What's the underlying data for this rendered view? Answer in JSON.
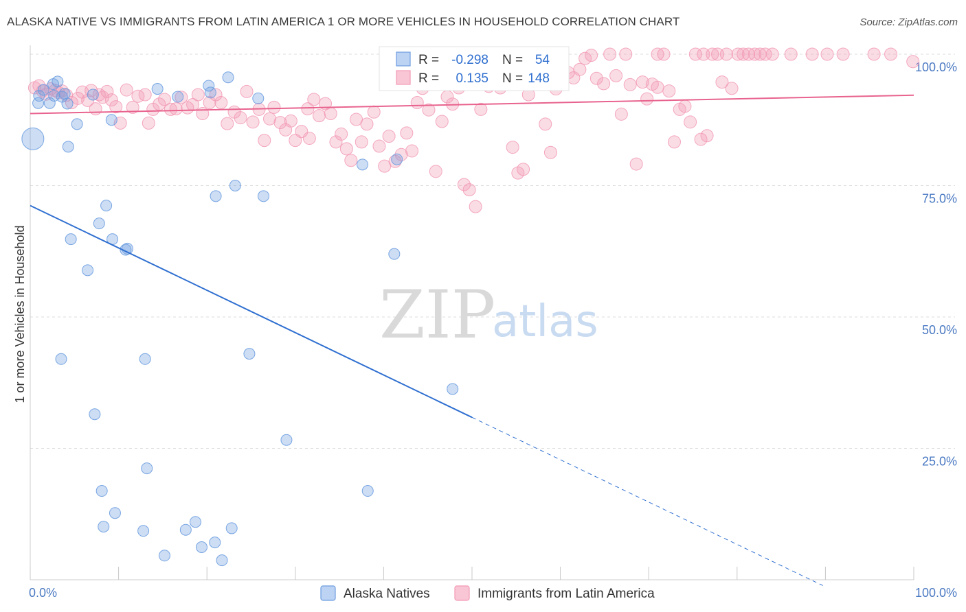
{
  "title": "ALASKA NATIVE VS IMMIGRANTS FROM LATIN AMERICA 1 OR MORE VEHICLES IN HOUSEHOLD CORRELATION CHART",
  "source": "Source: ZipAtlas.com",
  "watermark": {
    "zip": "ZIP",
    "atlas": "atlas"
  },
  "legend_stats": [
    {
      "r_label": "R =",
      "r_value": "-0.298",
      "n_label": "N =",
      "n_value": "54"
    },
    {
      "r_label": "R =",
      "r_value": "0.135",
      "n_label": "N =",
      "n_value": "148"
    }
  ],
  "chart_data": {
    "type": "scatter",
    "ylabel": "1 or more Vehicles in Household",
    "xlim": [
      0,
      100
    ],
    "ylim": [
      0,
      100
    ],
    "x_tick_labels": [
      "0.0%",
      "100.0%"
    ],
    "y_tick_labels": [
      "25.0%",
      "50.0%",
      "75.0%",
      "100.0%"
    ],
    "y_ticks": [
      25,
      50,
      75,
      100
    ],
    "grid": "horizontal dashed",
    "legend_position": "top-center",
    "colors": {
      "alaska": "#6d9de0",
      "latin": "#f29ab5",
      "alaska_line": "#2f6fd0",
      "latin_line": "#e8638e",
      "tick": "#4a79c2"
    },
    "series": [
      {
        "name": "Alaska Natives",
        "trend": {
          "x0": 0,
          "y0": 71.2,
          "x1": 50,
          "y1": 30.9,
          "dashed_to_x": 89.7
        },
        "points": [
          [
            0.3,
            83.9
          ],
          [
            0.9,
            90.7
          ],
          [
            1.5,
            93.2
          ],
          [
            2.2,
            90.7
          ],
          [
            2.6,
            94.3
          ],
          [
            3.1,
            94.8
          ],
          [
            3.6,
            91.9
          ],
          [
            2.7,
            92.1
          ],
          [
            4.2,
            90.6
          ],
          [
            3.9,
            92.5
          ],
          [
            5.3,
            86.7
          ],
          [
            4.3,
            82.4
          ],
          [
            9.2,
            87.5
          ],
          [
            16.7,
            91.9
          ],
          [
            14.4,
            93.4
          ],
          [
            22.4,
            95.6
          ],
          [
            23.2,
            75.0
          ],
          [
            21.0,
            73.0
          ],
          [
            20.2,
            94.0
          ],
          [
            20.4,
            92.7
          ],
          [
            25.8,
            91.6
          ],
          [
            26.4,
            73.0
          ],
          [
            8.6,
            71.2
          ],
          [
            7.8,
            67.8
          ],
          [
            4.6,
            64.8
          ],
          [
            9.3,
            64.8
          ],
          [
            11.0,
            63.0
          ],
          [
            10.8,
            62.8
          ],
          [
            6.5,
            58.9
          ],
          [
            3.5,
            42.0
          ],
          [
            13.0,
            42.0
          ],
          [
            24.8,
            43.0
          ],
          [
            7.3,
            31.5
          ],
          [
            29.0,
            26.6
          ],
          [
            13.2,
            21.2
          ],
          [
            8.1,
            16.9
          ],
          [
            38.2,
            16.9
          ],
          [
            9.6,
            12.7
          ],
          [
            8.3,
            10.1
          ],
          [
            12.8,
            9.3
          ],
          [
            17.6,
            9.5
          ],
          [
            18.7,
            11.0
          ],
          [
            22.8,
            9.8
          ],
          [
            19.4,
            6.2
          ],
          [
            20.9,
            7.1
          ],
          [
            15.2,
            4.6
          ],
          [
            21.7,
            3.7
          ],
          [
            41.2,
            62.0
          ],
          [
            44.5,
            100.0
          ],
          [
            41.5,
            80.0
          ],
          [
            37.6,
            79.0
          ],
          [
            47.8,
            36.3
          ],
          [
            1.0,
            92.1
          ],
          [
            7.1,
            92.3
          ]
        ]
      },
      {
        "name": "Immigrants from Latin America",
        "trend": {
          "x0": 0,
          "y0": 88.7,
          "x1": 100,
          "y1": 92.2
        },
        "points": [
          [
            0.5,
            93.6
          ],
          [
            1.0,
            94.0
          ],
          [
            1.4,
            93.0
          ],
          [
            1.8,
            92.4
          ],
          [
            2.3,
            93.4
          ],
          [
            2.8,
            93.1
          ],
          [
            3.2,
            92.7
          ],
          [
            3.6,
            93.0
          ],
          [
            4.1,
            92.2
          ],
          [
            4.7,
            90.8
          ],
          [
            5.4,
            91.6
          ],
          [
            5.9,
            92.8
          ],
          [
            6.5,
            91.2
          ],
          [
            6.9,
            93.1
          ],
          [
            7.4,
            89.6
          ],
          [
            7.8,
            92.3
          ],
          [
            8.2,
            91.8
          ],
          [
            8.7,
            92.9
          ],
          [
            9.2,
            91.3
          ],
          [
            9.7,
            90.0
          ],
          [
            10.2,
            86.9
          ],
          [
            10.9,
            93.2
          ],
          [
            11.6,
            89.9
          ],
          [
            12.2,
            92.0
          ],
          [
            13.0,
            92.3
          ],
          [
            13.4,
            86.9
          ],
          [
            13.9,
            89.5
          ],
          [
            14.6,
            90.5
          ],
          [
            15.2,
            91.4
          ],
          [
            15.9,
            89.5
          ],
          [
            16.5,
            89.6
          ],
          [
            17.1,
            91.8
          ],
          [
            17.8,
            89.8
          ],
          [
            18.4,
            90.4
          ],
          [
            19.0,
            92.3
          ],
          [
            19.5,
            88.7
          ],
          [
            20.3,
            90.8
          ],
          [
            21.0,
            92.3
          ],
          [
            21.6,
            90.8
          ],
          [
            22.3,
            86.8
          ],
          [
            23.1,
            89.0
          ],
          [
            23.8,
            87.9
          ],
          [
            24.5,
            92.9
          ],
          [
            25.2,
            87.1
          ],
          [
            25.9,
            89.5
          ],
          [
            26.5,
            83.6
          ],
          [
            27.1,
            87.7
          ],
          [
            27.6,
            89.9
          ],
          [
            28.3,
            87.0
          ],
          [
            28.9,
            85.6
          ],
          [
            29.5,
            87.3
          ],
          [
            30.0,
            83.6
          ],
          [
            30.7,
            85.3
          ],
          [
            31.4,
            89.6
          ],
          [
            32.1,
            91.4
          ],
          [
            32.7,
            88.3
          ],
          [
            33.4,
            90.6
          ],
          [
            34.0,
            88.7
          ],
          [
            34.6,
            83.3
          ],
          [
            35.2,
            84.8
          ],
          [
            35.8,
            82.0
          ],
          [
            36.3,
            79.8
          ],
          [
            36.9,
            87.6
          ],
          [
            37.5,
            83.3
          ],
          [
            38.1,
            86.7
          ],
          [
            38.9,
            89.0
          ],
          [
            39.5,
            82.5
          ],
          [
            40.1,
            78.7
          ],
          [
            40.6,
            84.4
          ],
          [
            41.3,
            79.6
          ],
          [
            42.0,
            80.9
          ],
          [
            42.6,
            85.0
          ],
          [
            43.2,
            81.6
          ],
          [
            43.8,
            90.8
          ],
          [
            44.4,
            93.5
          ],
          [
            45.1,
            89.4
          ],
          [
            45.9,
            77.7
          ],
          [
            46.6,
            87.2
          ],
          [
            47.2,
            91.9
          ],
          [
            47.8,
            90.5
          ],
          [
            48.5,
            93.6
          ],
          [
            49.1,
            75.2
          ],
          [
            49.7,
            74.2
          ],
          [
            50.4,
            71.0
          ],
          [
            51.0,
            89.5
          ],
          [
            51.9,
            93.9
          ],
          [
            52.6,
            95.1
          ],
          [
            53.2,
            93.6
          ],
          [
            54.0,
            95.5
          ],
          [
            54.6,
            82.3
          ],
          [
            55.2,
            77.4
          ],
          [
            55.8,
            78.1
          ],
          [
            56.4,
            92.3
          ],
          [
            57.0,
            94.5
          ],
          [
            57.6,
            95.3
          ],
          [
            58.3,
            86.7
          ],
          [
            58.9,
            81.3
          ],
          [
            59.5,
            93.4
          ],
          [
            60.2,
            95.0
          ],
          [
            60.9,
            96.5
          ],
          [
            61.5,
            95.5
          ],
          [
            62.2,
            97.1
          ],
          [
            62.8,
            99.2
          ],
          [
            63.5,
            99.8
          ],
          [
            64.1,
            95.4
          ],
          [
            64.9,
            94.4
          ],
          [
            65.6,
            100.0
          ],
          [
            66.3,
            95.9
          ],
          [
            66.9,
            88.6
          ],
          [
            67.4,
            100.0
          ],
          [
            67.9,
            94.2
          ],
          [
            68.6,
            79.1
          ],
          [
            69.3,
            94.7
          ],
          [
            69.8,
            91.5
          ],
          [
            70.4,
            94.3
          ],
          [
            71.0,
            93.7
          ],
          [
            71.7,
            100.0
          ],
          [
            72.3,
            93.0
          ],
          [
            72.9,
            83.3
          ],
          [
            73.5,
            89.5
          ],
          [
            74.1,
            90.1
          ],
          [
            74.7,
            87.1
          ],
          [
            75.3,
            100.0
          ],
          [
            75.9,
            83.8
          ],
          [
            76.6,
            84.5
          ],
          [
            77.2,
            100.0
          ],
          [
            77.8,
            100.0
          ],
          [
            78.3,
            94.7
          ],
          [
            78.8,
            100.0
          ],
          [
            79.4,
            93.5
          ],
          [
            80.1,
            100.0
          ],
          [
            80.7,
            100.0
          ],
          [
            81.3,
            100.0
          ],
          [
            82.0,
            100.0
          ],
          [
            82.6,
            100.0
          ],
          [
            83.2,
            100.0
          ],
          [
            84.0,
            100.0
          ],
          [
            86.1,
            100.0
          ],
          [
            88.5,
            100.0
          ],
          [
            90.2,
            100.0
          ],
          [
            92.0,
            100.0
          ],
          [
            95.5,
            100.0
          ],
          [
            97.4,
            100.0
          ],
          [
            99.9,
            98.6
          ],
          [
            76.2,
            100.0
          ],
          [
            71.0,
            100.0
          ],
          [
            49.7,
            100.0
          ],
          [
            31.6,
            84.0
          ]
        ]
      }
    ]
  }
}
